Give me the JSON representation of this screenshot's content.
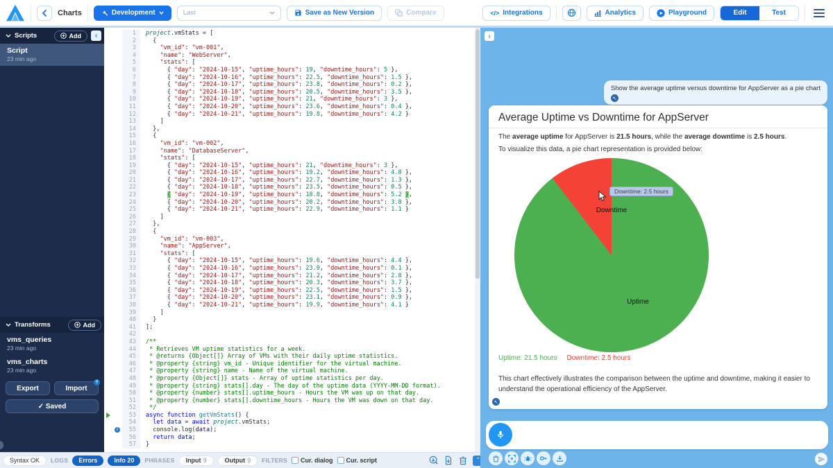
{
  "toolbar": {
    "nav_label": "Charts",
    "env_button": "Development",
    "version_select_placeholder": "Last",
    "save_button": "Save as New Version",
    "compare_button": "Compare",
    "integrations_glyph": "</>",
    "integrations_button": "Integrations",
    "analytics_button": "Analytics",
    "playground_button": "Playground",
    "edit_button": "Edit",
    "test_button": "Test"
  },
  "sidebar": {
    "scripts_header": "Scripts",
    "add_button": "Add",
    "scripts": [
      {
        "name": "Script",
        "time": "23 min ago"
      }
    ],
    "transforms_header": "Transforms",
    "transforms": [
      {
        "name": "vms_queries",
        "time": "23 min ago"
      },
      {
        "name": "vms_charts",
        "time": "23 min ago"
      }
    ],
    "export_button": "Export",
    "import_button": "Import",
    "import_badge": "?",
    "saved_button": "✓ Saved"
  },
  "editor": {
    "play_line": 53,
    "info_line": 55,
    "bracket_highlight_line": 23,
    "lines": [
      "project.vmStats = [",
      "  {",
      "    \"vm_id\": \"vm-001\",",
      "    \"name\": \"WebServer\",",
      "    \"stats\": [",
      "      { \"day\": \"2024-10-15\", \"uptime_hours\": 19, \"downtime_hours\": 5 },",
      "      { \"day\": \"2024-10-16\", \"uptime_hours\": 22.5, \"downtime_hours\": 1.5 },",
      "      { \"day\": \"2024-10-17\", \"uptime_hours\": 23.8, \"downtime_hours\": 0.2 },",
      "      { \"day\": \"2024-10-18\", \"uptime_hours\": 20.5, \"downtime_hours\": 3.5 },",
      "      { \"day\": \"2024-10-19\", \"uptime_hours\": 21, \"downtime_hours\": 3 },",
      "      { \"day\": \"2024-10-20\", \"uptime_hours\": 23.6, \"downtime_hours\": 0.4 },",
      "      { \"day\": \"2024-10-21\", \"uptime_hours\": 19.8, \"downtime_hours\": 4.2 }",
      "    ]",
      "  },",
      "  {",
      "    \"vm_id\": \"vm-002\",",
      "    \"name\": \"DatabaseServer\",",
      "    \"stats\": [",
      "      { \"day\": \"2024-10-15\", \"uptime_hours\": 21, \"downtime_hours\": 3 },",
      "      { \"day\": \"2024-10-16\", \"uptime_hours\": 19.2, \"downtime_hours\": 4.8 },",
      "      { \"day\": \"2024-10-17\", \"uptime_hours\": 22.7, \"downtime_hours\": 1.3 },",
      "      { \"day\": \"2024-10-18\", \"uptime_hours\": 23.5, \"downtime_hours\": 0.5 },",
      "      { \"day\": \"2024-10-19\", \"uptime_hours\": 18.8, \"downtime_hours\": 5.2 },",
      "      { \"day\": \"2024-10-20\", \"uptime_hours\": 20.2, \"downtime_hours\": 3.8 },",
      "      { \"day\": \"2024-10-21\", \"uptime_hours\": 22.9, \"downtime_hours\": 1.1 }",
      "    ]",
      "  },",
      "  {",
      "    \"vm_id\": \"vm-003\",",
      "    \"name\": \"AppServer\",",
      "    \"stats\": [",
      "      { \"day\": \"2024-10-15\", \"uptime_hours\": 19.6, \"downtime_hours\": 4.4 },",
      "      { \"day\": \"2024-10-16\", \"uptime_hours\": 23.9, \"downtime_hours\": 0.1 },",
      "      { \"day\": \"2024-10-17\", \"uptime_hours\": 21.2, \"downtime_hours\": 2.8 },",
      "      { \"day\": \"2024-10-18\", \"uptime_hours\": 20.3, \"downtime_hours\": 3.7 },",
      "      { \"day\": \"2024-10-19\", \"uptime_hours\": 22.5, \"downtime_hours\": 1.5 },",
      "      { \"day\": \"2024-10-20\", \"uptime_hours\": 23.1, \"downtime_hours\": 0.9 },",
      "      { \"day\": \"2024-10-21\", \"uptime_hours\": 19.9, \"downtime_hours\": 4.1 }",
      "    ]",
      "  }",
      "];",
      "",
      "/**",
      " * Retrieves VM uptime statistics for a week.",
      " * @returns {Object[]} Array of VMs with their daily uptime statistics.",
      " * @property {string} vm_id - Unique identifier for the virtual machine.",
      " * @property {string} name - Name of the virtual machine.",
      " * @property {Object[]} stats - Array of uptime statistics per day.",
      " * @property {string} stats[].day - The day of the uptime data (YYYY-MM-DD format).",
      " * @property {number} stats[].uptime_hours - Hours the VM was up on that day.",
      " * @property {number} stats[].downtime_hours - Hours the VM was down on that day.",
      " */",
      "async function getVmStats() {",
      "  let data = await project.vmStats;",
      "  console.log(data);",
      "  return data;",
      "}"
    ]
  },
  "statusbar": {
    "syntax": "Syntax OK",
    "logs_label": "LOGS",
    "errors_button": "Errors",
    "info_button": "Info 20",
    "phrases_label": "PHRASES",
    "input_label": "Input",
    "input_count": "9",
    "output_label": "Output",
    "output_count": "9",
    "filters_label": "FILTERS",
    "cur_dialog": "Cur. dialog",
    "cur_script": "Cur. script"
  },
  "chat": {
    "user_message": "Show the average uptime versus downtime for AppServer as a pie chart",
    "card": {
      "title": "Average Uptime vs Downtime for AppServer",
      "p1_segments": [
        {
          "t": "The ",
          "b": false
        },
        {
          "t": "average uptime",
          "b": true
        },
        {
          "t": " for AppServer is ",
          "b": false
        },
        {
          "t": "21.5 hours",
          "b": true
        },
        {
          "t": ", while the ",
          "b": false
        },
        {
          "t": "average downtime",
          "b": true
        },
        {
          "t": " is ",
          "b": false
        },
        {
          "t": "2.5 hours",
          "b": true
        },
        {
          "t": ".",
          "b": false
        }
      ],
      "p2": "To visualize this data, a pie chart representation is provided below:",
      "conclusion": "This chart effectively illustrates the comparison between the uptime and downtime, making it easier to understand the operational efficiency of the AppServer."
    },
    "action_icons": [
      "trash-icon",
      "expand-icon",
      "bug-icon",
      "key-icon",
      "download-icon"
    ],
    "tts_glyph": "↖"
  },
  "chart_data": {
    "type": "pie",
    "title": "Average Uptime vs Downtime for AppServer",
    "labels": [
      "Uptime",
      "Downtime"
    ],
    "values": [
      21.5,
      2.5
    ],
    "unit": "hours",
    "colors": [
      "#4caf50",
      "#f44336"
    ],
    "legend": [
      "Uptime: 21.5 hours",
      "Downtime: 2.5 hours"
    ],
    "legend_position": "bottom",
    "tooltip": "Downtime: 2.5 hours",
    "start_angle_deg": 0,
    "notes": "green uptime slice starts at 12 o'clock clockwise; red downtime slice ends at 12 o'clock"
  },
  "colors": {
    "primary_blue": "#1a73e8",
    "panel_blue": "#6db4ea",
    "sidebar_navy": "#1d2c4a",
    "pill_blue": "#1464c8",
    "uptime_green": "#4caf50",
    "downtime_red": "#f44336"
  }
}
